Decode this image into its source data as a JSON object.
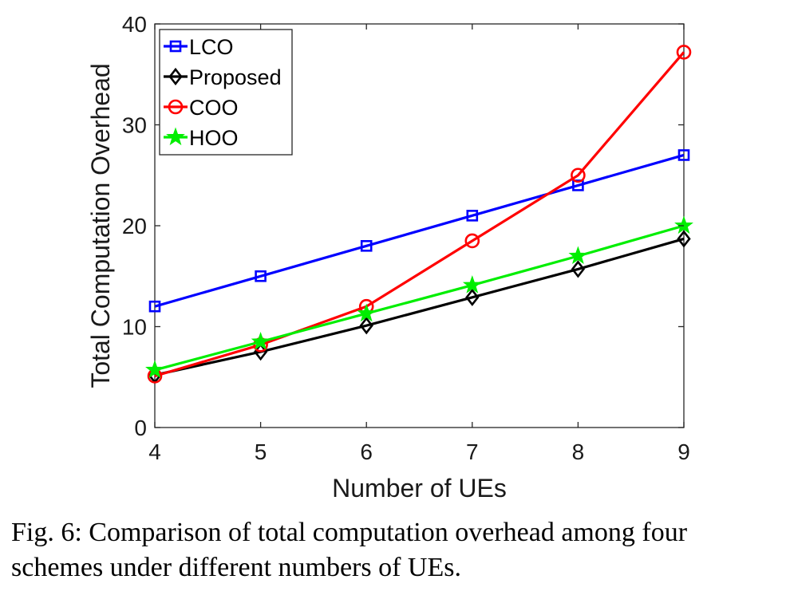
{
  "caption": "Fig. 6: Comparison of total computation overhead among four schemes under different numbers of UEs.",
  "chart_data": {
    "type": "line",
    "xlabel": "Number of UEs",
    "ylabel": "Total Computation Overhead",
    "x": [
      4,
      5,
      6,
      7,
      8,
      9
    ],
    "xlim": [
      4,
      9
    ],
    "ylim": [
      0,
      40
    ],
    "xticks": [
      "4",
      "5",
      "6",
      "7",
      "8",
      "9"
    ],
    "yticks": [
      "0",
      "10",
      "20",
      "30",
      "40"
    ],
    "grid": false,
    "legend_position": "top-left",
    "series": [
      {
        "name": "LCO",
        "color": "#0000ff",
        "marker": "square",
        "values": [
          12,
          15,
          18,
          21,
          24,
          27
        ]
      },
      {
        "name": "Proposed",
        "color": "#000000",
        "marker": "diamond",
        "values": [
          5.2,
          7.5,
          10.1,
          12.9,
          15.7,
          18.7
        ]
      },
      {
        "name": "COO",
        "color": "#ff0000",
        "marker": "circle",
        "values": [
          5.1,
          8.2,
          12,
          18.5,
          25,
          37.2
        ]
      },
      {
        "name": "HOO",
        "color": "#00ee00",
        "marker": "star",
        "values": [
          5.7,
          8.5,
          11.3,
          14.1,
          17,
          20
        ]
      }
    ]
  }
}
